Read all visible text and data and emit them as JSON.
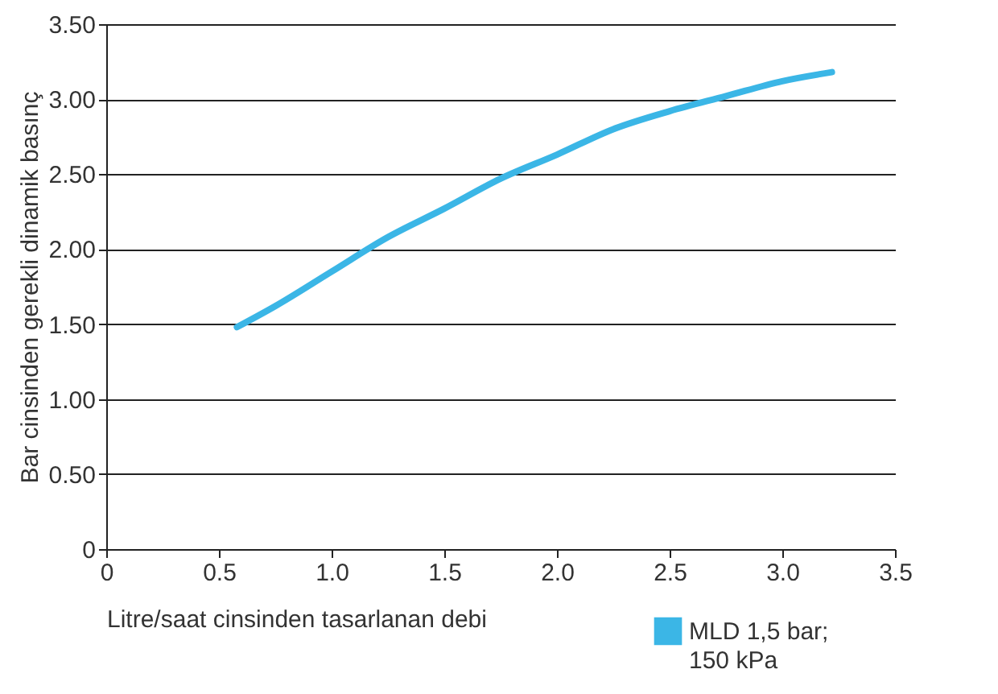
{
  "chart_data": {
    "type": "line",
    "xlabel": "Litre/saat cinsinden tasarlanan debi",
    "ylabel": "Bar cinsinden gerekli dinamik basınç",
    "x": [
      0.58,
      0.75,
      1.0,
      1.25,
      1.5,
      1.75,
      2.0,
      2.25,
      2.5,
      2.75,
      3.0,
      3.22
    ],
    "series": [
      {
        "name": "MLD 1,5 bar; 150 kPa",
        "color": "#3bb6e6",
        "values": [
          1.48,
          1.62,
          1.85,
          2.08,
          2.27,
          2.47,
          2.63,
          2.8,
          2.92,
          3.02,
          3.12,
          3.18
        ]
      }
    ],
    "xlim": [
      0,
      3.5
    ],
    "xticks": [
      0,
      {
        "value": 0.5,
        "label": "0.5"
      },
      {
        "value": 1,
        "label": "1.0"
      },
      {
        "value": 1.5,
        "label": "1.5"
      },
      {
        "value": 2,
        "label": "2.0"
      },
      {
        "value": 2.5,
        "label": "2.5"
      },
      {
        "value": 3,
        "label": "3.0"
      },
      {
        "value": 3.5,
        "label": "3.5"
      }
    ],
    "ylim": [
      0,
      3.5
    ],
    "yticks": [
      0,
      {
        "value": 0.5,
        "label": "0.50"
      },
      {
        "value": 1,
        "label": "1.00"
      },
      {
        "value": 1.5,
        "label": "1.50"
      },
      {
        "value": 2,
        "label": "2.00"
      },
      {
        "value": 2.5,
        "label": "2.50"
      },
      {
        "value": 3,
        "label": "3.00"
      },
      {
        "value": 3.5,
        "label": "3.50"
      }
    ],
    "grid": "y",
    "legend": "bottom right",
    "marker": "none",
    "line_style": "solid"
  }
}
